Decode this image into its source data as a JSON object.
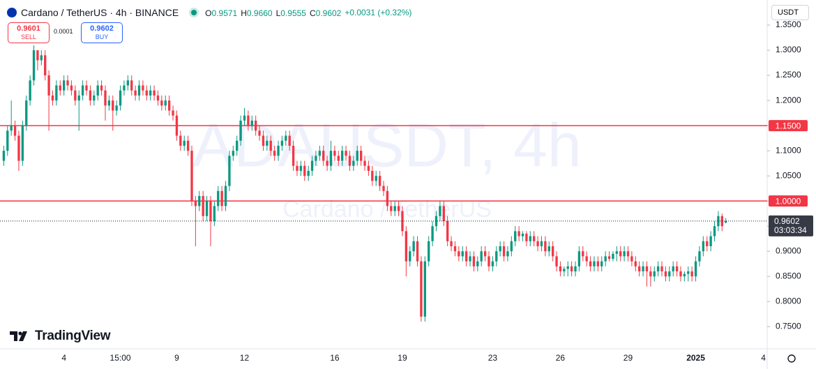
{
  "chart_data": {
    "type": "candlestick",
    "title": "Cardano / TetherUS · 4h · BINANCE",
    "ohlc_legend": [
      {
        "label": "O",
        "value": "0.9571"
      },
      {
        "label": "H",
        "value": "0.9660"
      },
      {
        "label": "L",
        "value": "0.9555"
      },
      {
        "label": "C",
        "value": "0.9602"
      }
    ],
    "change": "+0.0031 (+0.32%)",
    "trade": {
      "sell_price": "0.9601",
      "sell": "SELL",
      "spread": "0.0001",
      "buy_price": "0.9602",
      "buy": "BUY"
    },
    "currency": "USDT",
    "watermark": "ADAUSDT, 4h",
    "watermark_subtitle": "Cardano / TetherUS",
    "brand": "TradingView",
    "up_color": "#089981",
    "down_color": "#f23645",
    "grid": false,
    "xlim": [
      -1,
      203
    ],
    "xticks": [
      {
        "value": 16,
        "label": "4"
      },
      {
        "value": 31,
        "label": "15:00"
      },
      {
        "value": 46,
        "label": "9"
      },
      {
        "value": 64,
        "label": "12"
      },
      {
        "value": 88,
        "label": "16"
      },
      {
        "value": 106,
        "label": "19"
      },
      {
        "value": 130,
        "label": "23"
      },
      {
        "value": 148,
        "label": "26"
      },
      {
        "value": 166,
        "label": "29"
      },
      {
        "value": 184,
        "label": "2025"
      },
      {
        "value": 202,
        "label": "4"
      }
    ],
    "ylim": [
      0.706,
      1.4
    ],
    "yticks": [
      {
        "value": 0.75,
        "label": "0.7500"
      },
      {
        "value": 0.8,
        "label": "0.8000"
      },
      {
        "value": 0.85,
        "label": "0.8500"
      },
      {
        "value": 0.9,
        "label": "0.9000"
      },
      {
        "value": 0.95,
        "label": "0.9500"
      },
      {
        "value": 1.0,
        "label": "1.0000"
      },
      {
        "value": 1.05,
        "label": "1.0500"
      },
      {
        "value": 1.1,
        "label": "1.1000"
      },
      {
        "value": 1.15,
        "label": "1.1500"
      },
      {
        "value": 1.2,
        "label": "1.2000"
      },
      {
        "value": 1.25,
        "label": "1.2500"
      },
      {
        "value": 1.3,
        "label": "1.3000"
      },
      {
        "value": 1.35,
        "label": "1.3500"
      }
    ],
    "hlines": [
      {
        "value": 1.15,
        "label": "1.1500"
      },
      {
        "value": 1.0,
        "label": "1.0000"
      }
    ],
    "hline_color": "#f23645",
    "last_price": {
      "value": 0.9602,
      "label": "0.9602",
      "countdown": "03:03:34"
    },
    "candles": [
      [
        1.08,
        1.11,
        1.07,
        1.1
      ],
      [
        1.1,
        1.15,
        1.09,
        1.14
      ],
      [
        1.14,
        1.2,
        1.13,
        1.15
      ],
      [
        1.15,
        1.16,
        1.12,
        1.13
      ],
      [
        1.13,
        1.14,
        1.06,
        1.08
      ],
      [
        1.08,
        1.16,
        1.07,
        1.15
      ],
      [
        1.15,
        1.21,
        1.14,
        1.2
      ],
      [
        1.2,
        1.25,
        1.19,
        1.24
      ],
      [
        1.24,
        1.31,
        1.23,
        1.3
      ],
      [
        1.3,
        1.3,
        1.26,
        1.28
      ],
      [
        1.28,
        1.3,
        1.27,
        1.29
      ],
      [
        1.29,
        1.3,
        1.24,
        1.25
      ],
      [
        1.25,
        1.26,
        1.14,
        1.21
      ],
      [
        1.21,
        1.22,
        1.19,
        1.2
      ],
      [
        1.2,
        1.24,
        1.19,
        1.23
      ],
      [
        1.23,
        1.24,
        1.21,
        1.22
      ],
      [
        1.22,
        1.25,
        1.21,
        1.24
      ],
      [
        1.24,
        1.25,
        1.22,
        1.23
      ],
      [
        1.23,
        1.24,
        1.21,
        1.22
      ],
      [
        1.22,
        1.23,
        1.19,
        1.2
      ],
      [
        1.2,
        1.22,
        1.14,
        1.21
      ],
      [
        1.21,
        1.24,
        1.2,
        1.23
      ],
      [
        1.23,
        1.24,
        1.21,
        1.22
      ],
      [
        1.22,
        1.23,
        1.19,
        1.2
      ],
      [
        1.2,
        1.22,
        1.19,
        1.21
      ],
      [
        1.21,
        1.24,
        1.2,
        1.23
      ],
      [
        1.23,
        1.24,
        1.21,
        1.22
      ],
      [
        1.22,
        1.23,
        1.16,
        1.19
      ],
      [
        1.19,
        1.21,
        1.18,
        1.2
      ],
      [
        1.2,
        1.21,
        1.14,
        1.18
      ],
      [
        1.18,
        1.2,
        1.17,
        1.19
      ],
      [
        1.19,
        1.23,
        1.18,
        1.22
      ],
      [
        1.22,
        1.24,
        1.21,
        1.23
      ],
      [
        1.23,
        1.25,
        1.22,
        1.24
      ],
      [
        1.24,
        1.25,
        1.21,
        1.22
      ],
      [
        1.22,
        1.23,
        1.2,
        1.21
      ],
      [
        1.21,
        1.24,
        1.2,
        1.23
      ],
      [
        1.23,
        1.24,
        1.21,
        1.22
      ],
      [
        1.22,
        1.23,
        1.2,
        1.21
      ],
      [
        1.21,
        1.23,
        1.2,
        1.22
      ],
      [
        1.22,
        1.23,
        1.2,
        1.21
      ],
      [
        1.21,
        1.22,
        1.19,
        1.2
      ],
      [
        1.2,
        1.21,
        1.18,
        1.19
      ],
      [
        1.19,
        1.21,
        1.18,
        1.2
      ],
      [
        1.2,
        1.21,
        1.17,
        1.18
      ],
      [
        1.18,
        1.19,
        1.16,
        1.17
      ],
      [
        1.17,
        1.18,
        1.12,
        1.13
      ],
      [
        1.13,
        1.14,
        1.1,
        1.11
      ],
      [
        1.11,
        1.13,
        1.1,
        1.12
      ],
      [
        1.12,
        1.13,
        1.09,
        1.1
      ],
      [
        1.1,
        1.11,
        0.99,
        1.0
      ],
      [
        1.0,
        1.01,
        0.91,
        0.99
      ],
      [
        0.99,
        1.02,
        0.98,
        1.01
      ],
      [
        1.01,
        1.02,
        0.96,
        0.97
      ],
      [
        0.97,
        1.01,
        0.96,
        1.0
      ],
      [
        1.0,
        1.01,
        0.91,
        0.96
      ],
      [
        0.96,
        1.0,
        0.95,
        0.99
      ],
      [
        0.99,
        1.03,
        0.98,
        1.02
      ],
      [
        1.02,
        1.03,
        0.98,
        0.99
      ],
      [
        0.99,
        1.04,
        0.98,
        1.03
      ],
      [
        1.03,
        1.1,
        1.02,
        1.09
      ],
      [
        1.09,
        1.11,
        1.08,
        1.1
      ],
      [
        1.1,
        1.13,
        1.09,
        1.12
      ],
      [
        1.12,
        1.17,
        1.11,
        1.16
      ],
      [
        1.16,
        1.185,
        1.15,
        1.17
      ],
      [
        1.17,
        1.18,
        1.14,
        1.15
      ],
      [
        1.15,
        1.17,
        1.14,
        1.16
      ],
      [
        1.16,
        1.17,
        1.13,
        1.14
      ],
      [
        1.14,
        1.15,
        1.12,
        1.13
      ],
      [
        1.13,
        1.14,
        1.1,
        1.11
      ],
      [
        1.11,
        1.13,
        1.1,
        1.12
      ],
      [
        1.12,
        1.13,
        1.09,
        1.1
      ],
      [
        1.1,
        1.11,
        1.08,
        1.09
      ],
      [
        1.09,
        1.12,
        1.08,
        1.11
      ],
      [
        1.11,
        1.13,
        1.1,
        1.12
      ],
      [
        1.12,
        1.14,
        1.11,
        1.13
      ],
      [
        1.13,
        1.14,
        1.1,
        1.11
      ],
      [
        1.11,
        1.12,
        1.06,
        1.07
      ],
      [
        1.07,
        1.08,
        1.05,
        1.06
      ],
      [
        1.06,
        1.08,
        1.05,
        1.07
      ],
      [
        1.07,
        1.08,
        1.04,
        1.05
      ],
      [
        1.05,
        1.07,
        1.04,
        1.06
      ],
      [
        1.06,
        1.09,
        1.05,
        1.08
      ],
      [
        1.08,
        1.1,
        1.07,
        1.09
      ],
      [
        1.09,
        1.11,
        1.08,
        1.1
      ],
      [
        1.1,
        1.11,
        1.07,
        1.08
      ],
      [
        1.08,
        1.09,
        1.06,
        1.07
      ],
      [
        1.07,
        1.12,
        1.06,
        1.1
      ],
      [
        1.1,
        1.11,
        1.08,
        1.09
      ],
      [
        1.09,
        1.1,
        1.07,
        1.08
      ],
      [
        1.08,
        1.11,
        1.07,
        1.1
      ],
      [
        1.1,
        1.11,
        1.08,
        1.09
      ],
      [
        1.09,
        1.1,
        1.06,
        1.07
      ],
      [
        1.07,
        1.09,
        1.06,
        1.08
      ],
      [
        1.08,
        1.11,
        1.07,
        1.1
      ],
      [
        1.1,
        1.11,
        1.07,
        1.08
      ],
      [
        1.08,
        1.09,
        1.06,
        1.07
      ],
      [
        1.07,
        1.08,
        1.05,
        1.06
      ],
      [
        1.06,
        1.07,
        1.03,
        1.04
      ],
      [
        1.04,
        1.06,
        1.03,
        1.05
      ],
      [
        1.05,
        1.06,
        1.02,
        1.03
      ],
      [
        1.03,
        1.04,
        1.01,
        1.02
      ],
      [
        1.02,
        1.03,
        0.98,
        0.99
      ],
      [
        0.99,
        1.0,
        0.97,
        0.98
      ],
      [
        0.98,
        1.0,
        0.97,
        0.99
      ],
      [
        0.99,
        1.0,
        0.97,
        0.98
      ],
      [
        0.98,
        0.99,
        0.93,
        0.94
      ],
      [
        0.94,
        0.95,
        0.85,
        0.88
      ],
      [
        0.88,
        0.91,
        0.87,
        0.9
      ],
      [
        0.9,
        0.93,
        0.89,
        0.92
      ],
      [
        0.92,
        0.93,
        0.87,
        0.88
      ],
      [
        0.88,
        0.89,
        0.76,
        0.77
      ],
      [
        0.77,
        0.89,
        0.76,
        0.88
      ],
      [
        0.88,
        0.93,
        0.87,
        0.92
      ],
      [
        0.92,
        0.96,
        0.91,
        0.95
      ],
      [
        0.95,
        0.98,
        0.94,
        0.97
      ],
      [
        0.97,
        1.0,
        0.96,
        0.99
      ],
      [
        0.99,
        1.0,
        0.95,
        0.96
      ],
      [
        0.96,
        0.97,
        0.91,
        0.92
      ],
      [
        0.92,
        0.93,
        0.9,
        0.91
      ],
      [
        0.91,
        0.92,
        0.89,
        0.9
      ],
      [
        0.9,
        0.91,
        0.88,
        0.89
      ],
      [
        0.89,
        0.91,
        0.88,
        0.9
      ],
      [
        0.9,
        0.91,
        0.87,
        0.88
      ],
      [
        0.88,
        0.9,
        0.87,
        0.89
      ],
      [
        0.89,
        0.9,
        0.86,
        0.87
      ],
      [
        0.87,
        0.89,
        0.86,
        0.88
      ],
      [
        0.88,
        0.91,
        0.87,
        0.9
      ],
      [
        0.9,
        0.91,
        0.88,
        0.89
      ],
      [
        0.89,
        0.9,
        0.86,
        0.87
      ],
      [
        0.87,
        0.89,
        0.86,
        0.88
      ],
      [
        0.88,
        0.91,
        0.87,
        0.9
      ],
      [
        0.9,
        0.92,
        0.89,
        0.91
      ],
      [
        0.91,
        0.92,
        0.88,
        0.89
      ],
      [
        0.89,
        0.91,
        0.88,
        0.9
      ],
      [
        0.9,
        0.93,
        0.89,
        0.92
      ],
      [
        0.92,
        0.95,
        0.91,
        0.94
      ],
      [
        0.94,
        0.95,
        0.92,
        0.93
      ],
      [
        0.93,
        0.94,
        0.92,
        0.935
      ],
      [
        0.935,
        0.94,
        0.91,
        0.92
      ],
      [
        0.92,
        0.94,
        0.91,
        0.93
      ],
      [
        0.93,
        0.94,
        0.91,
        0.92
      ],
      [
        0.92,
        0.93,
        0.9,
        0.91
      ],
      [
        0.91,
        0.93,
        0.9,
        0.92
      ],
      [
        0.92,
        0.93,
        0.89,
        0.9
      ],
      [
        0.9,
        0.92,
        0.89,
        0.91
      ],
      [
        0.91,
        0.92,
        0.88,
        0.89
      ],
      [
        0.89,
        0.9,
        0.86,
        0.87
      ],
      [
        0.87,
        0.88,
        0.85,
        0.86
      ],
      [
        0.86,
        0.87,
        0.85,
        0.865
      ],
      [
        0.865,
        0.88,
        0.85,
        0.87
      ],
      [
        0.87,
        0.88,
        0.85,
        0.86
      ],
      [
        0.86,
        0.88,
        0.85,
        0.87
      ],
      [
        0.87,
        0.91,
        0.86,
        0.9
      ],
      [
        0.9,
        0.91,
        0.88,
        0.89
      ],
      [
        0.89,
        0.9,
        0.87,
        0.88
      ],
      [
        0.88,
        0.89,
        0.86,
        0.87
      ],
      [
        0.87,
        0.89,
        0.86,
        0.88
      ],
      [
        0.88,
        0.89,
        0.86,
        0.87
      ],
      [
        0.87,
        0.89,
        0.86,
        0.88
      ],
      [
        0.88,
        0.9,
        0.87,
        0.89
      ],
      [
        0.89,
        0.9,
        0.88,
        0.885
      ],
      [
        0.885,
        0.9,
        0.88,
        0.895
      ],
      [
        0.895,
        0.91,
        0.88,
        0.9
      ],
      [
        0.9,
        0.91,
        0.88,
        0.89
      ],
      [
        0.89,
        0.91,
        0.88,
        0.9
      ],
      [
        0.9,
        0.91,
        0.88,
        0.89
      ],
      [
        0.89,
        0.9,
        0.87,
        0.88
      ],
      [
        0.88,
        0.89,
        0.86,
        0.87
      ],
      [
        0.87,
        0.88,
        0.85,
        0.86
      ],
      [
        0.86,
        0.88,
        0.85,
        0.87
      ],
      [
        0.87,
        0.88,
        0.83,
        0.86
      ],
      [
        0.86,
        0.87,
        0.83,
        0.85
      ],
      [
        0.85,
        0.87,
        0.84,
        0.86
      ],
      [
        0.86,
        0.88,
        0.85,
        0.87
      ],
      [
        0.87,
        0.88,
        0.85,
        0.86
      ],
      [
        0.86,
        0.87,
        0.84,
        0.85
      ],
      [
        0.85,
        0.87,
        0.84,
        0.86
      ],
      [
        0.86,
        0.88,
        0.85,
        0.87
      ],
      [
        0.87,
        0.88,
        0.85,
        0.86
      ],
      [
        0.86,
        0.87,
        0.84,
        0.85
      ],
      [
        0.85,
        0.86,
        0.84,
        0.855
      ],
      [
        0.855,
        0.87,
        0.84,
        0.86
      ],
      [
        0.86,
        0.87,
        0.84,
        0.85
      ],
      [
        0.85,
        0.89,
        0.84,
        0.88
      ],
      [
        0.88,
        0.91,
        0.87,
        0.9
      ],
      [
        0.9,
        0.93,
        0.89,
        0.92
      ],
      [
        0.92,
        0.93,
        0.9,
        0.91
      ],
      [
        0.91,
        0.94,
        0.9,
        0.93
      ],
      [
        0.93,
        0.96,
        0.92,
        0.95
      ],
      [
        0.95,
        0.98,
        0.94,
        0.97
      ],
      [
        0.97,
        0.975,
        0.94,
        0.95
      ],
      [
        0.9571,
        0.966,
        0.9555,
        0.9602
      ]
    ]
  }
}
